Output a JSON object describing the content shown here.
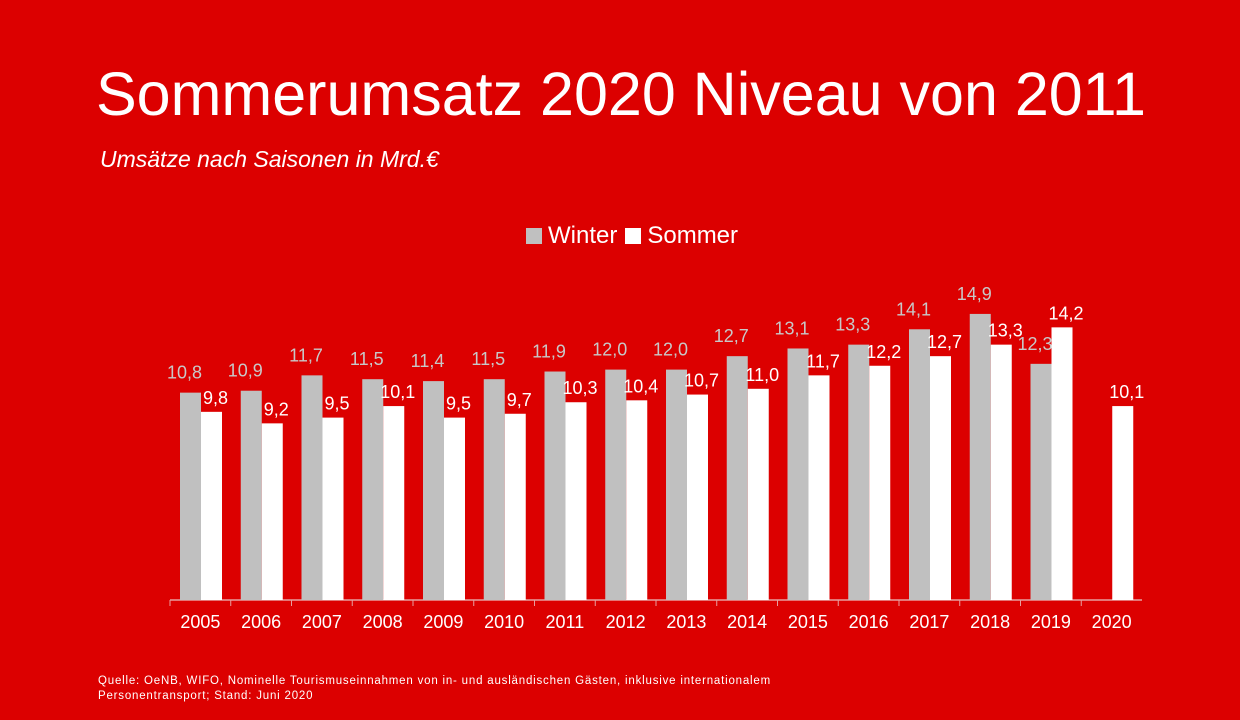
{
  "title": "Sommerumsatz 2020 Niveau von 2011",
  "subtitle": "Umsätze nach Saisonen in Mrd.€",
  "source_line1": "Quelle:  OeNB, WIFO, Nominelle Tourismuseinnahmen von in- und ausländischen Gästen, inklusive internationalem",
  "source_line2": "Personentransport; Stand: Juni 2020",
  "colors": {
    "background": "#dc0000",
    "winter": "#c0c0c0",
    "sommer": "#ffffff",
    "winter_label": "#c8c8c8"
  },
  "chart_data": {
    "type": "bar",
    "categories": [
      "2005",
      "2006",
      "2007",
      "2008",
      "2009",
      "2010",
      "2011",
      "2012",
      "2013",
      "2014",
      "2015",
      "2016",
      "2017",
      "2018",
      "2019",
      "2020"
    ],
    "series": [
      {
        "name": "Winter",
        "values": [
          10.8,
          10.9,
          11.7,
          11.5,
          11.4,
          11.5,
          11.9,
          12.0,
          12.0,
          12.7,
          13.1,
          13.3,
          14.1,
          14.9,
          12.3,
          null
        ],
        "labels": [
          "10,8",
          "10,9",
          "11,7",
          "11,5",
          "11,4",
          "11,5",
          "11,9",
          "12,0",
          "12,0",
          "12,7",
          "13,1",
          "13,3",
          "14,1",
          "14,9",
          "12,3",
          ""
        ]
      },
      {
        "name": "Sommer",
        "values": [
          9.8,
          9.2,
          9.5,
          10.1,
          9.5,
          9.7,
          10.3,
          10.4,
          10.7,
          11.0,
          11.7,
          12.2,
          12.7,
          13.3,
          14.2,
          10.1
        ],
        "labels": [
          "9,8",
          "9,2",
          "9,5",
          "10,1",
          "9,5",
          "9,7",
          "10,3",
          "10,4",
          "10,7",
          "11,0",
          "11,7",
          "12,2",
          "12,7",
          "13,3",
          "14,2",
          "10,1"
        ]
      }
    ],
    "ylim": [
      0,
      15
    ],
    "legend": "top-center",
    "grid": false
  }
}
